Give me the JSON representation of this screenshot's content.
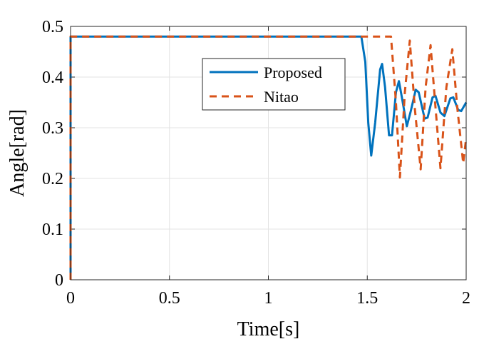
{
  "chart_data": {
    "type": "line",
    "xlabel": "Time[s]",
    "ylabel": "Angle[rad]",
    "xlim": [
      0,
      2
    ],
    "ylim": [
      0,
      0.5
    ],
    "x_ticks": [
      0,
      0.5,
      1,
      1.5,
      2
    ],
    "x_tick_labels": [
      "0",
      "0.5",
      "1",
      "1.5",
      "2"
    ],
    "y_ticks": [
      0,
      0.1,
      0.2,
      0.3,
      0.4,
      0.5
    ],
    "y_tick_labels": [
      "0",
      "0.1",
      "0.2",
      "0.3",
      "0.4",
      "0.5"
    ],
    "grid": true,
    "legend_position": "top-center",
    "series": [
      {
        "name": "Proposed",
        "color": "#0072BD",
        "style": "solid",
        "points": [
          [
            0,
            0
          ],
          [
            0,
            0.48
          ],
          [
            1.47,
            0.48
          ],
          [
            1.49,
            0.43
          ],
          [
            1.505,
            0.31
          ],
          [
            1.52,
            0.245
          ],
          [
            1.54,
            0.31
          ],
          [
            1.565,
            0.415
          ],
          [
            1.575,
            0.426
          ],
          [
            1.59,
            0.38
          ],
          [
            1.61,
            0.285
          ],
          [
            1.625,
            0.285
          ],
          [
            1.645,
            0.37
          ],
          [
            1.66,
            0.392
          ],
          [
            1.675,
            0.36
          ],
          [
            1.7,
            0.303
          ],
          [
            1.72,
            0.333
          ],
          [
            1.745,
            0.375
          ],
          [
            1.76,
            0.37
          ],
          [
            1.79,
            0.318
          ],
          [
            1.805,
            0.32
          ],
          [
            1.83,
            0.36
          ],
          [
            1.845,
            0.363
          ],
          [
            1.87,
            0.33
          ],
          [
            1.89,
            0.323
          ],
          [
            1.92,
            0.358
          ],
          [
            1.935,
            0.36
          ],
          [
            1.96,
            0.335
          ],
          [
            1.975,
            0.333
          ],
          [
            2.0,
            0.35
          ]
        ]
      },
      {
        "name": "Nitao",
        "color": "#D95319",
        "style": "dashed",
        "points": [
          [
            0,
            0
          ],
          [
            0,
            0.48
          ],
          [
            1.62,
            0.48
          ],
          [
            1.645,
            0.35
          ],
          [
            1.665,
            0.202
          ],
          [
            1.69,
            0.37
          ],
          [
            1.715,
            0.472
          ],
          [
            1.74,
            0.34
          ],
          [
            1.77,
            0.218
          ],
          [
            1.795,
            0.38
          ],
          [
            1.82,
            0.463
          ],
          [
            1.845,
            0.34
          ],
          [
            1.87,
            0.22
          ],
          [
            1.9,
            0.38
          ],
          [
            1.93,
            0.455
          ],
          [
            1.955,
            0.34
          ],
          [
            1.985,
            0.23
          ],
          [
            2.0,
            0.28
          ]
        ]
      }
    ]
  }
}
